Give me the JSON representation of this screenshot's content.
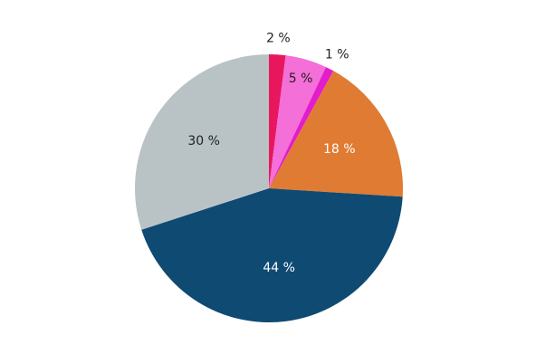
{
  "chart_data": {
    "type": "pie",
    "values": [
      2,
      5,
      1,
      18,
      44,
      30
    ],
    "value_labels": [
      "2 %",
      "5 %",
      "1 %",
      "18 %",
      "44 %",
      "30 %"
    ],
    "colors": [
      "#e8175d",
      "#f46fd8",
      "#e31ccc",
      "#e07b33",
      "#0f4a73",
      "#b9c3c6"
    ]
  }
}
